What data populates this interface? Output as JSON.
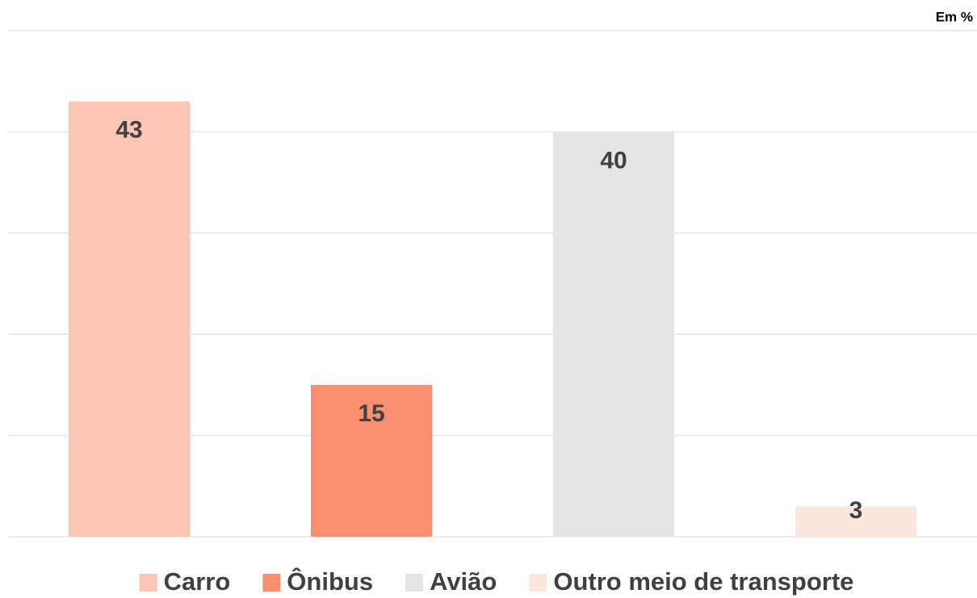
{
  "chart_data": {
    "type": "bar",
    "subtitle": "Em %",
    "categories": [
      "Carro",
      "Ônibus",
      "Avião",
      "Outro meio de transporte"
    ],
    "values": [
      43,
      15,
      40,
      3
    ],
    "colors": [
      "#fcc5b5",
      "#fb9070",
      "#e5e5e5",
      "#fde6de"
    ],
    "ylim": [
      0,
      50
    ],
    "yticks": [
      0,
      10,
      20,
      30,
      40,
      50
    ],
    "grid": true,
    "legend": "bottom"
  }
}
